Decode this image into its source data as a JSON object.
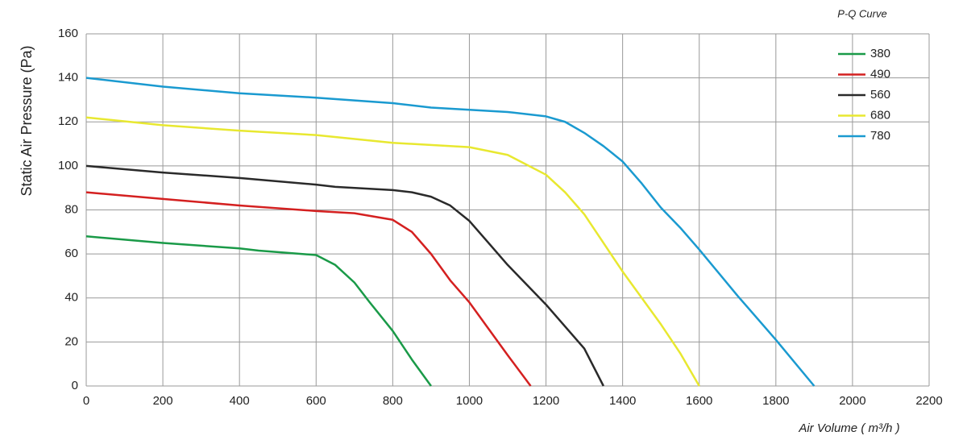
{
  "chart_data": {
    "type": "line",
    "title": "P-Q Curve",
    "x_label": "Air Volume ( m³/h )",
    "y_label": "Static Air Pressure  (Pa)",
    "xlim": [
      0,
      2200
    ],
    "xticks": [
      0,
      200,
      400,
      600,
      800,
      1000,
      1200,
      1400,
      1600,
      1800,
      2000,
      2200
    ],
    "ylim": [
      0,
      160
    ],
    "yticks": [
      0,
      20,
      40,
      60,
      80,
      100,
      120,
      140,
      160
    ],
    "grid": true,
    "legend": "upper right",
    "series": [
      {
        "name": "380",
        "color": "#1a9a48",
        "x": [
          0,
          200,
          400,
          450,
          600,
          650,
          700,
          740,
          800,
          850,
          900
        ],
        "values": [
          68,
          65,
          62.5,
          61.5,
          59.5,
          55,
          47,
          38,
          25,
          12,
          0
        ]
      },
      {
        "name": "490",
        "color": "#d42020",
        "x": [
          0,
          200,
          400,
          600,
          700,
          800,
          850,
          900,
          950,
          1000,
          1050,
          1100,
          1160
        ],
        "values": [
          88,
          85,
          82,
          79.5,
          78.5,
          75.5,
          70,
          60,
          48,
          38,
          26,
          14,
          0
        ]
      },
      {
        "name": "560",
        "color": "#2a2a2a",
        "x": [
          0,
          200,
          400,
          600,
          650,
          800,
          850,
          900,
          950,
          1000,
          1050,
          1100,
          1200,
          1300,
          1350
        ],
        "values": [
          100,
          97,
          94.5,
          91.5,
          90.5,
          89,
          88,
          86,
          82,
          75,
          65,
          55,
          37,
          17,
          0
        ]
      },
      {
        "name": "680",
        "color": "#e8e830",
        "x": [
          0,
          200,
          400,
          600,
          800,
          1000,
          1100,
          1200,
          1250,
          1300,
          1350,
          1400,
          1450,
          1500,
          1550,
          1600
        ],
        "values": [
          122,
          118.5,
          116,
          114,
          110.5,
          108.5,
          105,
          96,
          88,
          78,
          65,
          52,
          40,
          28,
          15,
          0
        ]
      },
      {
        "name": "780",
        "color": "#1a9ad0",
        "x": [
          0,
          200,
          400,
          600,
          800,
          900,
          1000,
          1100,
          1200,
          1250,
          1300,
          1350,
          1400,
          1450,
          1500,
          1550,
          1600,
          1700,
          1800,
          1900
        ],
        "values": [
          140,
          136,
          133,
          131,
          128.5,
          126.5,
          125.5,
          124.5,
          122.5,
          120,
          115,
          109,
          102,
          92,
          81,
          72,
          62,
          41,
          21,
          0
        ]
      }
    ]
  }
}
